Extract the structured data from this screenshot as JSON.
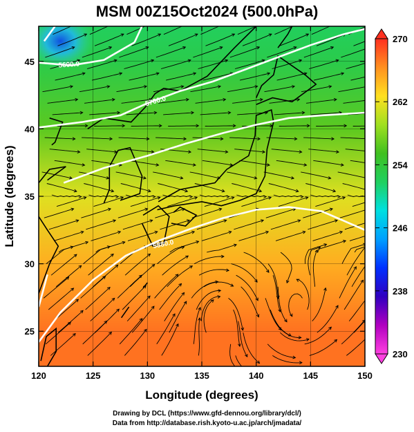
{
  "chart_data": {
    "type": "heatmap",
    "title": "MSM 00Z15Oct2024 (500.0hPa)",
    "xlabel": "Longitude (degrees)",
    "ylabel": "Latitude  (degrees)",
    "xlim": [
      120,
      150
    ],
    "ylim": [
      22.4,
      47.6
    ],
    "x_ticks": [
      120,
      125,
      130,
      135,
      140,
      145,
      150
    ],
    "y_ticks": [
      25,
      30,
      35,
      40,
      45
    ],
    "colorbar": {
      "range": [
        230,
        270
      ],
      "ticks": [
        270,
        262,
        254,
        246,
        238,
        230
      ],
      "colors": [
        "#ff40e0",
        "#b000c0",
        "#3000c0",
        "#0030ff",
        "#00a0ff",
        "#00e0e0",
        "#20d060",
        "#40c020",
        "#a0e020",
        "#ffe020",
        "#ff9020",
        "#ff3020"
      ],
      "over_under_triangles": true
    },
    "contours": [
      {
        "label": "5600.0",
        "level": 5600,
        "points": [
          [
            120.5,
            46.5
          ],
          [
            121.5,
            47.6
          ]
        ]
      },
      {
        "label": "5600.0",
        "level": 5600,
        "points": [
          [
            120,
            44.9
          ],
          [
            123,
            44.7
          ],
          [
            126,
            45.1
          ],
          [
            127.5,
            45.8
          ],
          [
            128.8,
            46.4
          ]
        ]
      },
      {
        "label": "5600.0",
        "level": 5600,
        "points": [
          [
            128.8,
            46.4
          ],
          [
            129.5,
            47.6
          ]
        ]
      },
      {
        "label": "5700.0",
        "level": 5700,
        "points": [
          [
            120,
            40.1
          ],
          [
            124,
            40.5
          ],
          [
            127.5,
            41.0
          ],
          [
            130,
            41.9
          ],
          [
            133,
            42.8
          ],
          [
            136,
            43.5
          ],
          [
            139,
            44.4
          ],
          [
            142,
            45.3
          ],
          [
            145,
            46.2
          ],
          [
            148,
            47.0
          ],
          [
            150,
            47.4
          ]
        ]
      },
      {
        "label": "5800.0",
        "level": 5800,
        "points": [
          [
            122.3,
            36.0
          ],
          [
            126,
            37.1
          ],
          [
            130,
            38.0
          ],
          [
            133.5,
            38.9
          ],
          [
            137,
            39.7
          ],
          [
            140,
            40.3
          ],
          [
            143,
            40.8
          ],
          [
            146,
            41.0
          ],
          [
            150,
            41.2
          ]
        ]
      },
      {
        "label": "5880.0",
        "level": 5880,
        "points": [
          [
            120,
            24.2
          ],
          [
            122,
            26.4
          ],
          [
            125,
            28.8
          ],
          [
            128,
            30.6
          ],
          [
            131,
            31.7
          ],
          [
            134,
            32.6
          ],
          [
            137,
            33.4
          ],
          [
            140,
            34.0
          ],
          [
            143,
            34.2
          ],
          [
            146,
            33.9
          ],
          [
            148,
            33.2
          ],
          [
            150,
            32.5
          ]
        ]
      },
      {
        "label": "5880.0",
        "level": 5880,
        "points": [
          [
            120,
            26.8
          ],
          [
            120.8,
            29.2
          ]
        ]
      }
    ],
    "contour_labels": [
      {
        "text": "5600.0",
        "lon": 122.8,
        "lat": 44.6,
        "angle": -4
      },
      {
        "text": "5700.0",
        "lon": 130.8,
        "lat": 41.9,
        "angle": -16
      },
      {
        "text": "5880.0",
        "lon": 131.5,
        "lat": 31.3,
        "angle": -12
      }
    ],
    "temperature_field": {
      "description_units": "K",
      "lat_grid": [
        22.4,
        25,
        30,
        35,
        40,
        45,
        47.6
      ],
      "values_by_lat": [
        267.5,
        267.5,
        265.0,
        261.5,
        256.5,
        253.0,
        252.0
      ],
      "cold_pocket": {
        "lon": 122,
        "lat": 46.5,
        "value": 244
      }
    }
  },
  "credits": {
    "line1": "Drawing by DCL (https://www.gfd-dennou.org/library/dcl/)",
    "line2": "Data from http://database.rish.kyoto-u.ac.jp/arch/jmadata/"
  }
}
